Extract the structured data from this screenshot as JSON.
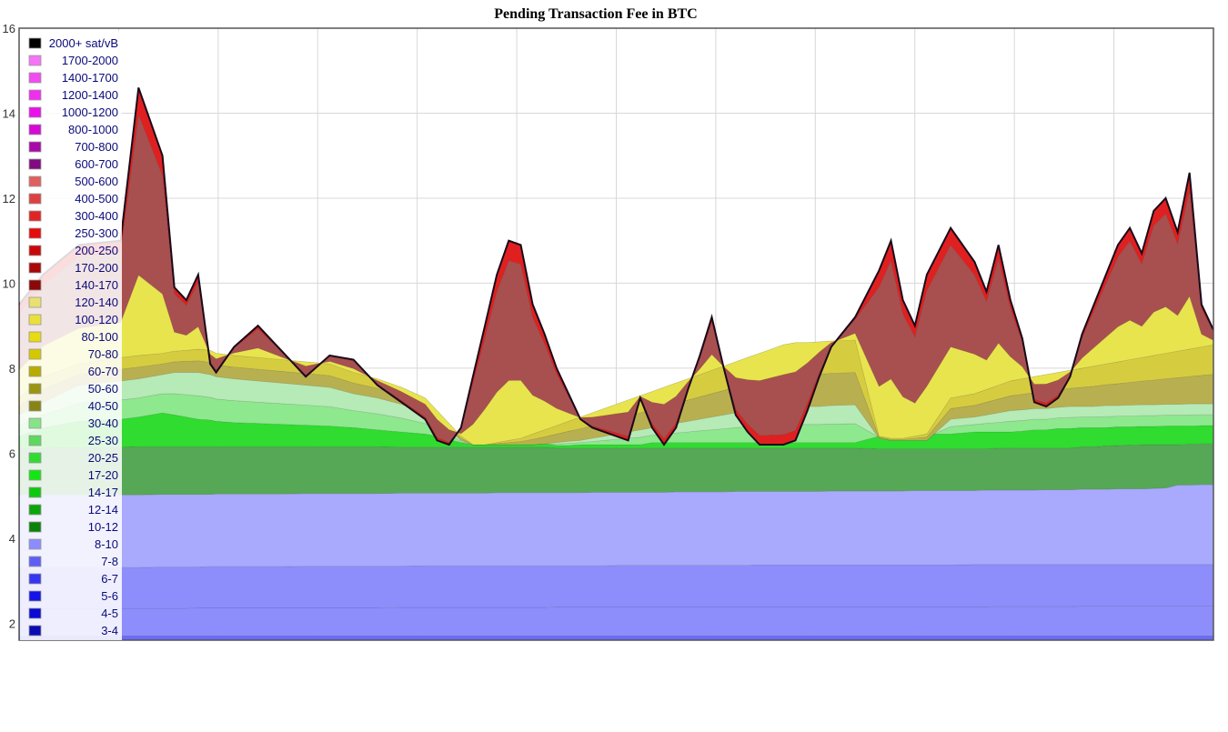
{
  "chart_data": {
    "type": "area",
    "stacked": true,
    "title": "Pending Transaction Fee in BTC",
    "xlabel": "",
    "ylabel": "",
    "ylim": [
      1.6,
      16
    ],
    "y_ticks": [
      2,
      4,
      6,
      8,
      10,
      12,
      14,
      16
    ],
    "grid": true,
    "legend_position": "top-left",
    "x_gridlines": 12,
    "colors": {
      "total_line": "#1a0a1a",
      "grid": "#d8d8d8",
      "frame": "#555555"
    },
    "legend": [
      {
        "label": "2000+ sat/vB",
        "color": "#000000"
      },
      {
        "label": "1700-2000",
        "color": "#f573f5"
      },
      {
        "label": "1400-1700",
        "color": "#f04cf0"
      },
      {
        "label": "1200-1400",
        "color": "#ee2fee"
      },
      {
        "label": "1000-1200",
        "color": "#ea10ea"
      },
      {
        "label": "800-1000",
        "color": "#d50ad5"
      },
      {
        "label": "700-800",
        "color": "#a80aa8"
      },
      {
        "label": "600-700",
        "color": "#800a80"
      },
      {
        "label": "500-600",
        "color": "#e06060"
      },
      {
        "label": "400-500",
        "color": "#dd4040"
      },
      {
        "label": "300-400",
        "color": "#e02424"
      },
      {
        "label": "250-300",
        "color": "#e60a0a"
      },
      {
        "label": "200-250",
        "color": "#c80808"
      },
      {
        "label": "170-200",
        "color": "#a80808"
      },
      {
        "label": "140-170",
        "color": "#8a0808"
      },
      {
        "label": "120-140",
        "color": "#e8e070"
      },
      {
        "label": "100-120",
        "color": "#eae03a"
      },
      {
        "label": "80-100",
        "color": "#e6dc10"
      },
      {
        "label": "70-80",
        "color": "#d6c800"
      },
      {
        "label": "60-70",
        "color": "#b8ac00"
      },
      {
        "label": "50-60",
        "color": "#9c9410"
      },
      {
        "label": "40-50",
        "color": "#878414"
      },
      {
        "label": "30-40",
        "color": "#86e486"
      },
      {
        "label": "25-30",
        "color": "#5ed85e"
      },
      {
        "label": "20-25",
        "color": "#2fdc2f"
      },
      {
        "label": "17-20",
        "color": "#14e614"
      },
      {
        "label": "14-17",
        "color": "#0ec80e"
      },
      {
        "label": "12-14",
        "color": "#0aa50a"
      },
      {
        "label": "10-12",
        "color": "#0a820a"
      },
      {
        "label": "8-10",
        "color": "#8c8cff"
      },
      {
        "label": "7-8",
        "color": "#5e5ef6"
      },
      {
        "label": "6-7",
        "color": "#3636f0"
      },
      {
        "label": "5-6",
        "color": "#1414e8"
      },
      {
        "label": "4-5",
        "color": "#0a0ad2"
      },
      {
        "label": "3-4",
        "color": "#0a0ab4"
      }
    ],
    "band_fills": {
      "blue_deep": "#6a6afc",
      "blue_mid": "#8d8dfc",
      "blue_light": "#a9a9fd",
      "green_dark": "#56a856",
      "green_bright": "#2fdc2f",
      "green_light": "#8ee88e",
      "green_pale": "#b6eab6",
      "olive": "#b8b050",
      "yellow_dark": "#d6cc40",
      "yellow": "#e8e44e",
      "yellow_light": "#ece88a",
      "dark_red": "#a85050",
      "red": "#e02020"
    },
    "boundaries": {
      "x": [
        0,
        0.02,
        0.05,
        0.085,
        0.1,
        0.12,
        0.13,
        0.14,
        0.15,
        0.16,
        0.165,
        0.18,
        0.2,
        0.22,
        0.24,
        0.26,
        0.28,
        0.3,
        0.32,
        0.34,
        0.35,
        0.36,
        0.37,
        0.38,
        0.39,
        0.4,
        0.41,
        0.42,
        0.43,
        0.44,
        0.45,
        0.46,
        0.47,
        0.48,
        0.49,
        0.5,
        0.51,
        0.52,
        0.53,
        0.54,
        0.55,
        0.56,
        0.57,
        0.58,
        0.59,
        0.6,
        0.61,
        0.62,
        0.63,
        0.64,
        0.65,
        0.66,
        0.67,
        0.68,
        0.7,
        0.72,
        0.73,
        0.74,
        0.75,
        0.76,
        0.78,
        0.8,
        0.81,
        0.82,
        0.83,
        0.84,
        0.85,
        0.86,
        0.87,
        0.88,
        0.89,
        0.9,
        0.91,
        0.92,
        0.93,
        0.94,
        0.95,
        0.96,
        0.97,
        0.98,
        0.99,
        1
      ],
      "b1": [
        1.7,
        1.7,
        1.7,
        1.7,
        1.7,
        1.7,
        1.7,
        1.7,
        1.7,
        1.7,
        1.7,
        1.7,
        1.7,
        1.7,
        1.7,
        1.7,
        1.7,
        1.7,
        1.7,
        1.7,
        1.7,
        1.7,
        1.7,
        1.7,
        1.7,
        1.7,
        1.7,
        1.7,
        1.7,
        1.7,
        1.7,
        1.7,
        1.7,
        1.7,
        1.7,
        1.7,
        1.7,
        1.7,
        1.7,
        1.7,
        1.7,
        1.7,
        1.7,
        1.7,
        1.7,
        1.7,
        1.7,
        1.7,
        1.7,
        1.7,
        1.7,
        1.7,
        1.7,
        1.7,
        1.7,
        1.7,
        1.7,
        1.7,
        1.7,
        1.7,
        1.7,
        1.7,
        1.7,
        1.7,
        1.7,
        1.7,
        1.7,
        1.7,
        1.7,
        1.7,
        1.7,
        1.7,
        1.7,
        1.7,
        1.7,
        1.7,
        1.7,
        1.7,
        1.7,
        1.7,
        1.7,
        1.7
      ],
      "b2": [
        2.35,
        2.35,
        2.35,
        2.35,
        2.35,
        2.35,
        2.35,
        2.35,
        2.36,
        2.36,
        2.36,
        2.36,
        2.36,
        2.36,
        2.36,
        2.36,
        2.36,
        2.36,
        2.37,
        2.37,
        2.37,
        2.37,
        2.37,
        2.37,
        2.37,
        2.37,
        2.37,
        2.37,
        2.37,
        2.37,
        2.38,
        2.38,
        2.38,
        2.38,
        2.38,
        2.38,
        2.38,
        2.38,
        2.38,
        2.38,
        2.38,
        2.38,
        2.38,
        2.38,
        2.38,
        2.38,
        2.38,
        2.38,
        2.38,
        2.38,
        2.38,
        2.38,
        2.38,
        2.38,
        2.38,
        2.38,
        2.38,
        2.38,
        2.38,
        2.38,
        2.38,
        2.38,
        2.38,
        2.39,
        2.39,
        2.39,
        2.39,
        2.39,
        2.39,
        2.39,
        2.4,
        2.4,
        2.4,
        2.4,
        2.4,
        2.4,
        2.4,
        2.4,
        2.4,
        2.4,
        2.4,
        2.4
      ],
      "b3": [
        3.3,
        3.31,
        3.31,
        3.31,
        3.31,
        3.32,
        3.32,
        3.32,
        3.32,
        3.33,
        3.33,
        3.33,
        3.33,
        3.33,
        3.34,
        3.34,
        3.34,
        3.34,
        3.34,
        3.35,
        3.35,
        3.35,
        3.35,
        3.35,
        3.35,
        3.35,
        3.35,
        3.35,
        3.35,
        3.35,
        3.35,
        3.35,
        3.35,
        3.35,
        3.35,
        3.36,
        3.36,
        3.36,
        3.36,
        3.36,
        3.36,
        3.36,
        3.36,
        3.36,
        3.36,
        3.36,
        3.36,
        3.37,
        3.37,
        3.37,
        3.37,
        3.37,
        3.37,
        3.37,
        3.37,
        3.37,
        3.37,
        3.37,
        3.37,
        3.37,
        3.37,
        3.38,
        3.38,
        3.38,
        3.38,
        3.38,
        3.38,
        3.38,
        3.38,
        3.38,
        3.38,
        3.38,
        3.38,
        3.38,
        3.38,
        3.38,
        3.38,
        3.38,
        3.38,
        3.38,
        3.38,
        3.38
      ],
      "b4": [
        5.02,
        5.02,
        5.02,
        5.02,
        5.02,
        5.03,
        5.03,
        5.03,
        5.03,
        5.03,
        5.04,
        5.04,
        5.04,
        5.04,
        5.05,
        5.05,
        5.05,
        5.05,
        5.06,
        5.06,
        5.06,
        5.06,
        5.06,
        5.06,
        5.06,
        5.07,
        5.07,
        5.07,
        5.07,
        5.07,
        5.07,
        5.07,
        5.07,
        5.08,
        5.08,
        5.08,
        5.08,
        5.08,
        5.08,
        5.08,
        5.09,
        5.09,
        5.09,
        5.09,
        5.09,
        5.1,
        5.1,
        5.1,
        5.1,
        5.1,
        5.1,
        5.1,
        5.1,
        5.11,
        5.11,
        5.11,
        5.11,
        5.11,
        5.12,
        5.12,
        5.12,
        5.12,
        5.13,
        5.13,
        5.13,
        5.13,
        5.13,
        5.14,
        5.14,
        5.14,
        5.15,
        5.15,
        5.15,
        5.16,
        5.16,
        5.16,
        5.17,
        5.18,
        5.25,
        5.25,
        5.26,
        5.26
      ],
      "b5": [
        6.1,
        6.12,
        6.13,
        6.14,
        6.15,
        6.15,
        6.15,
        6.15,
        6.15,
        6.15,
        6.15,
        6.15,
        6.15,
        6.15,
        6.15,
        6.15,
        6.15,
        6.15,
        6.14,
        6.14,
        6.14,
        6.14,
        6.14,
        6.14,
        6.14,
        6.14,
        6.14,
        6.14,
        6.14,
        6.14,
        6.12,
        6.12,
        6.12,
        6.12,
        6.12,
        6.12,
        6.12,
        6.12,
        6.12,
        6.12,
        6.12,
        6.12,
        6.12,
        6.12,
        6.12,
        6.12,
        6.12,
        6.12,
        6.12,
        6.12,
        6.12,
        6.12,
        6.12,
        6.12,
        6.12,
        6.1,
        6.1,
        6.1,
        6.1,
        6.1,
        6.1,
        6.1,
        6.1,
        6.12,
        6.12,
        6.12,
        6.12,
        6.12,
        6.12,
        6.12,
        6.15,
        6.15,
        6.17,
        6.18,
        6.19,
        6.2,
        6.2,
        6.2,
        6.2,
        6.21,
        6.22,
        6.22
      ],
      "b6": [
        6.4,
        6.6,
        6.75,
        6.8,
        6.85,
        6.95,
        6.9,
        6.85,
        6.8,
        6.78,
        6.75,
        6.72,
        6.7,
        6.68,
        6.66,
        6.64,
        6.6,
        6.55,
        6.5,
        6.45,
        6.4,
        6.32,
        6.25,
        6.2,
        6.2,
        6.2,
        6.2,
        6.2,
        6.2,
        6.22,
        6.18,
        6.18,
        6.2,
        6.2,
        6.2,
        6.2,
        6.2,
        6.2,
        6.25,
        6.25,
        6.25,
        6.25,
        6.25,
        6.25,
        6.25,
        6.25,
        6.25,
        6.25,
        6.25,
        6.25,
        6.25,
        6.25,
        6.25,
        6.25,
        6.25,
        6.4,
        6.45,
        6.45,
        6.45,
        6.45,
        6.45,
        6.5,
        6.5,
        6.5,
        6.5,
        6.52,
        6.55,
        6.55,
        6.58,
        6.58,
        6.6,
        6.6,
        6.6,
        6.62,
        6.62,
        6.63,
        6.63,
        6.64,
        6.64,
        6.64,
        6.65,
        6.65
      ],
      "b7": [
        6.9,
        7.2,
        7.6,
        7.7,
        7.75,
        7.85,
        7.9,
        7.9,
        7.9,
        7.85,
        7.8,
        7.75,
        7.7,
        7.65,
        7.6,
        7.55,
        7.4,
        7.3,
        7.15,
        6.95,
        6.75,
        6.55,
        6.3,
        6.2,
        6.2,
        6.2,
        6.2,
        6.2,
        6.2,
        6.22,
        6.25,
        6.28,
        6.3,
        6.35,
        6.4,
        6.45,
        6.5,
        6.55,
        6.6,
        6.65,
        6.7,
        6.75,
        6.8,
        6.85,
        6.9,
        6.95,
        7.0,
        7.05,
        7.1,
        7.1,
        7.1,
        7.1,
        7.1,
        7.12,
        7.14,
        6.35,
        6.3,
        6.3,
        6.3,
        6.3,
        6.8,
        6.85,
        6.9,
        6.95,
        7.0,
        7.02,
        7.05,
        7.05,
        7.08,
        7.1,
        7.1,
        7.1,
        7.12,
        7.12,
        7.13,
        7.14,
        7.14,
        7.15,
        7.15,
        7.16,
        7.16,
        7.16
      ],
      "b8": [
        7.3,
        7.8,
        8.1,
        8.25,
        8.3,
        8.35,
        8.4,
        8.42,
        8.45,
        8.42,
        8.35,
        8.3,
        8.25,
        8.2,
        8.15,
        8.1,
        7.9,
        7.75,
        7.55,
        7.3,
        7.0,
        6.7,
        6.4,
        6.2,
        6.2,
        6.25,
        6.3,
        6.35,
        6.45,
        6.55,
        6.65,
        6.75,
        6.85,
        6.95,
        7.05,
        7.15,
        7.25,
        7.35,
        7.45,
        7.55,
        7.65,
        7.75,
        7.85,
        7.95,
        8.05,
        8.15,
        8.25,
        8.35,
        8.45,
        8.55,
        8.6,
        8.6,
        8.62,
        8.64,
        8.66,
        6.4,
        6.35,
        6.35,
        6.4,
        6.45,
        7.3,
        7.4,
        7.5,
        7.6,
        7.7,
        7.75,
        7.8,
        7.85,
        7.9,
        7.95,
        8.0,
        8.05,
        8.1,
        8.15,
        8.2,
        8.25,
        8.3,
        8.35,
        8.4,
        8.45,
        8.5,
        8.55
      ],
      "total": [
        9.5,
        10.2,
        10.9,
        11.0,
        14.6,
        13.0,
        9.9,
        9.6,
        10.2,
        8.1,
        7.9,
        8.5,
        9.0,
        8.4,
        7.8,
        8.3,
        8.2,
        7.6,
        7.2,
        6.8,
        6.3,
        6.2,
        6.6,
        7.8,
        9.0,
        10.2,
        11.0,
        10.9,
        9.5,
        8.8,
        8.0,
        7.4,
        6.8,
        6.6,
        6.5,
        6.4,
        6.3,
        7.3,
        6.6,
        6.2,
        6.6,
        7.5,
        8.3,
        9.2,
        8.0,
        6.9,
        6.5,
        6.2,
        6.2,
        6.2,
        6.3,
        7.0,
        7.8,
        8.5,
        9.2,
        10.3,
        11.0,
        9.6,
        9.0,
        10.2,
        11.3,
        10.5,
        9.8,
        10.9,
        9.6,
        8.7,
        7.2,
        7.1,
        7.3,
        7.8,
        8.8,
        9.5,
        10.2,
        10.9,
        11.3,
        10.7,
        11.7,
        12.0,
        11.2,
        12.6,
        9.5,
        8.9
      ]
    }
  }
}
